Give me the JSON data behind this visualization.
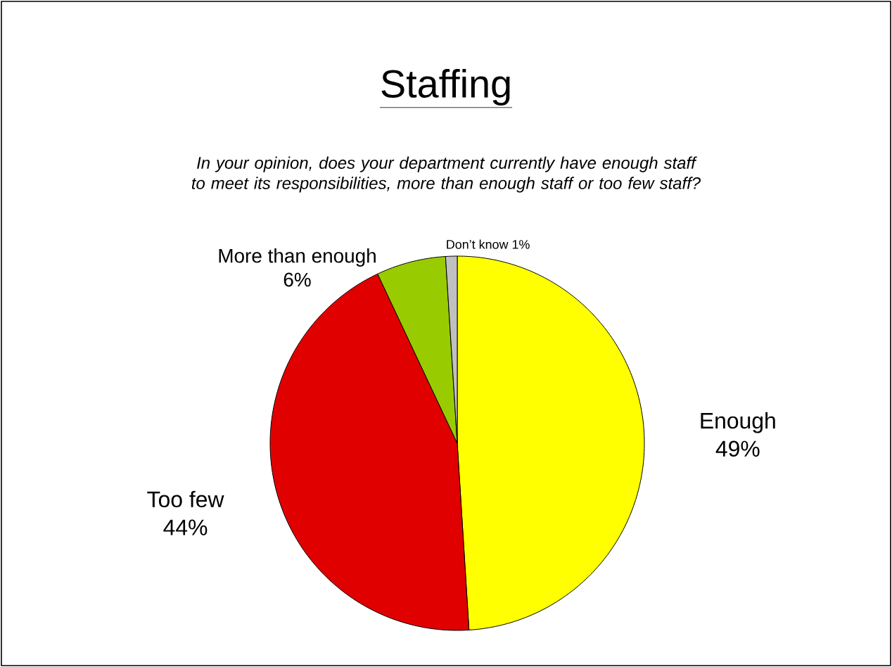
{
  "chart_data": {
    "type": "pie",
    "title": "Staffing",
    "subtitle": "In your opinion, does your department currently have enough staff to meet its responsibilities, more than enough staff or too few staff?",
    "categories": [
      "Enough",
      "Too few",
      "More than enough",
      "Don’t know"
    ],
    "values": [
      49,
      44,
      6,
      1
    ],
    "value_labels": [
      "49%",
      "44%",
      "6%",
      "1%"
    ],
    "colors": [
      "#ffff00",
      "#e00000",
      "#99cc00",
      "#c0c0c0"
    ]
  }
}
